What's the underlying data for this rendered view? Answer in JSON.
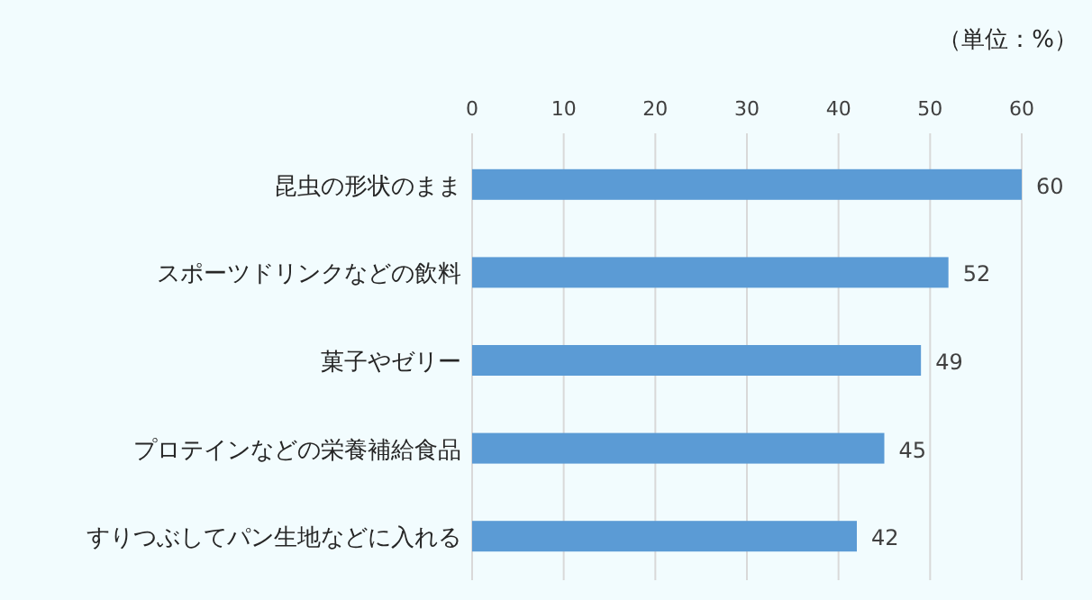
{
  "chart_data": {
    "type": "bar",
    "orientation": "horizontal",
    "categories": [
      "昆虫の形状のまま",
      "スポーツドリンクなどの飲料",
      "菓子やゼリー",
      "プロテインなどの栄養補給食品",
      "すりつぶしてパン生地などに入れる"
    ],
    "values": [
      60,
      52,
      49,
      45,
      42
    ],
    "color": "#5b9bd5",
    "xlim": [
      0,
      60
    ],
    "xticks": [
      0,
      10,
      20,
      30,
      40,
      50,
      60
    ],
    "grid": "x",
    "data_labels": true,
    "tick_labels": "x",
    "annotations": [
      "（単位：%）"
    ]
  }
}
